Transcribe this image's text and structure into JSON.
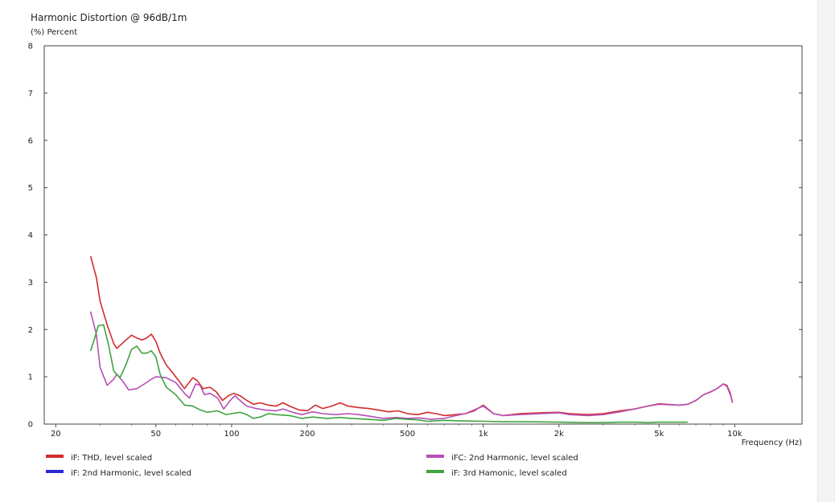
{
  "chart_data": {
    "type": "line",
    "title": "Harmonic Distortion @ 96dB/1m",
    "ylabel": "(%)  Percent",
    "xlabel": "Frequency  (Hz)",
    "x_scale": "log",
    "xlim": [
      18,
      18500
    ],
    "ylim": [
      0,
      8
    ],
    "grid": false,
    "legend_position": "bottom",
    "y_ticks": [
      {
        "value": 0,
        "label": "0"
      },
      {
        "value": 1,
        "label": "1"
      },
      {
        "value": 2,
        "label": "2"
      },
      {
        "value": 3,
        "label": "3"
      },
      {
        "value": 4,
        "label": "4"
      },
      {
        "value": 5,
        "label": "5"
      },
      {
        "value": 6,
        "label": "6"
      },
      {
        "value": 7,
        "label": "7"
      },
      {
        "value": 8,
        "label": "8"
      }
    ],
    "x_ticks": [
      {
        "value": 20,
        "label": "20"
      },
      {
        "value": 50,
        "label": "50"
      },
      {
        "value": 100,
        "label": "100"
      },
      {
        "value": 200,
        "label": "200"
      },
      {
        "value": 500,
        "label": "500"
      },
      {
        "value": 1000,
        "label": "1k"
      },
      {
        "value": 2000,
        "label": "2k"
      },
      {
        "value": 5000,
        "label": "5k"
      },
      {
        "value": 10000,
        "label": "10k"
      }
    ],
    "series": [
      {
        "name": "iF: THD, level scaled",
        "color": "#d42a2a",
        "points": [
          [
            27.5,
            3.55
          ],
          [
            29,
            3.1
          ],
          [
            30,
            2.6
          ],
          [
            32,
            2.1
          ],
          [
            34,
            1.7
          ],
          [
            35,
            1.6
          ],
          [
            37,
            1.72
          ],
          [
            40,
            1.88
          ],
          [
            42,
            1.82
          ],
          [
            44,
            1.78
          ],
          [
            46,
            1.82
          ],
          [
            48,
            1.9
          ],
          [
            50,
            1.75
          ],
          [
            52,
            1.5
          ],
          [
            55,
            1.25
          ],
          [
            58,
            1.1
          ],
          [
            62,
            0.9
          ],
          [
            65,
            0.75
          ],
          [
            70,
            0.98
          ],
          [
            73,
            0.92
          ],
          [
            77,
            0.75
          ],
          [
            82,
            0.78
          ],
          [
            87,
            0.68
          ],
          [
            92,
            0.5
          ],
          [
            97,
            0.6
          ],
          [
            102,
            0.65
          ],
          [
            108,
            0.6
          ],
          [
            115,
            0.5
          ],
          [
            122,
            0.42
          ],
          [
            130,
            0.45
          ],
          [
            140,
            0.4
          ],
          [
            150,
            0.38
          ],
          [
            160,
            0.45
          ],
          [
            170,
            0.38
          ],
          [
            185,
            0.3
          ],
          [
            200,
            0.28
          ],
          [
            215,
            0.4
          ],
          [
            230,
            0.33
          ],
          [
            250,
            0.38
          ],
          [
            270,
            0.45
          ],
          [
            290,
            0.38
          ],
          [
            320,
            0.35
          ],
          [
            350,
            0.33
          ],
          [
            380,
            0.3
          ],
          [
            420,
            0.26
          ],
          [
            460,
            0.28
          ],
          [
            500,
            0.22
          ],
          [
            550,
            0.2
          ],
          [
            600,
            0.25
          ],
          [
            650,
            0.22
          ],
          [
            700,
            0.18
          ],
          [
            780,
            0.2
          ],
          [
            850,
            0.22
          ],
          [
            920,
            0.28
          ],
          [
            1000,
            0.4
          ],
          [
            1100,
            0.22
          ],
          [
            1200,
            0.18
          ],
          [
            1400,
            0.22
          ],
          [
            1700,
            0.24
          ],
          [
            2000,
            0.25
          ],
          [
            2200,
            0.22
          ],
          [
            2600,
            0.2
          ],
          [
            3000,
            0.22
          ],
          [
            3500,
            0.28
          ],
          [
            4000,
            0.32
          ],
          [
            4500,
            0.38
          ],
          [
            5000,
            0.43
          ],
          [
            6000,
            0.4
          ],
          [
            6500,
            0.42
          ],
          [
            7000,
            0.5
          ],
          [
            7500,
            0.62
          ],
          [
            8000,
            0.68
          ],
          [
            8500,
            0.75
          ],
          [
            9000,
            0.85
          ],
          [
            9300,
            0.82
          ],
          [
            9600,
            0.65
          ],
          [
            9800,
            0.45
          ]
        ]
      },
      {
        "name": "iF: 2nd Harmonic, level scaled",
        "color": "#2a2ad4",
        "points": []
      },
      {
        "name": "iFC: 2nd Harmonic, level scaled",
        "color": "#b54fb5",
        "points": [
          [
            27.5,
            2.38
          ],
          [
            29,
            1.9
          ],
          [
            30,
            1.2
          ],
          [
            32,
            0.82
          ],
          [
            34,
            0.95
          ],
          [
            35,
            1.05
          ],
          [
            37,
            0.9
          ],
          [
            39,
            0.72
          ],
          [
            42,
            0.75
          ],
          [
            45,
            0.85
          ],
          [
            48,
            0.95
          ],
          [
            50,
            1.0
          ],
          [
            55,
            0.98
          ],
          [
            60,
            0.88
          ],
          [
            65,
            0.65
          ],
          [
            68,
            0.55
          ],
          [
            72,
            0.85
          ],
          [
            75,
            0.82
          ],
          [
            78,
            0.62
          ],
          [
            82,
            0.65
          ],
          [
            88,
            0.55
          ],
          [
            93,
            0.32
          ],
          [
            98,
            0.48
          ],
          [
            103,
            0.6
          ],
          [
            108,
            0.5
          ],
          [
            115,
            0.38
          ],
          [
            125,
            0.33
          ],
          [
            135,
            0.3
          ],
          [
            150,
            0.28
          ],
          [
            160,
            0.32
          ],
          [
            175,
            0.25
          ],
          [
            190,
            0.2
          ],
          [
            210,
            0.26
          ],
          [
            230,
            0.22
          ],
          [
            260,
            0.2
          ],
          [
            290,
            0.22
          ],
          [
            320,
            0.2
          ],
          [
            360,
            0.16
          ],
          [
            400,
            0.12
          ],
          [
            450,
            0.14
          ],
          [
            500,
            0.12
          ],
          [
            560,
            0.13
          ],
          [
            620,
            0.1
          ],
          [
            700,
            0.12
          ],
          [
            780,
            0.18
          ],
          [
            850,
            0.22
          ],
          [
            920,
            0.3
          ],
          [
            1000,
            0.38
          ],
          [
            1100,
            0.22
          ],
          [
            1200,
            0.18
          ],
          [
            1400,
            0.2
          ],
          [
            1700,
            0.22
          ],
          [
            2000,
            0.24
          ],
          [
            2200,
            0.2
          ],
          [
            2600,
            0.18
          ],
          [
            3000,
            0.2
          ],
          [
            3500,
            0.26
          ],
          [
            4000,
            0.32
          ],
          [
            4500,
            0.38
          ],
          [
            5000,
            0.42
          ],
          [
            6000,
            0.4
          ],
          [
            6500,
            0.42
          ],
          [
            7000,
            0.5
          ],
          [
            7500,
            0.62
          ],
          [
            8000,
            0.68
          ],
          [
            8500,
            0.75
          ],
          [
            9000,
            0.85
          ],
          [
            9300,
            0.8
          ],
          [
            9600,
            0.62
          ],
          [
            9800,
            0.45
          ]
        ]
      },
      {
        "name": "iF: 3rd Hamonic, level scaled",
        "color": "#3fa33f",
        "points": [
          [
            27.5,
            1.55
          ],
          [
            28.5,
            1.8
          ],
          [
            29.5,
            2.08
          ],
          [
            31,
            2.1
          ],
          [
            32.5,
            1.65
          ],
          [
            34,
            1.12
          ],
          [
            36,
            0.98
          ],
          [
            38,
            1.25
          ],
          [
            40,
            1.58
          ],
          [
            42,
            1.65
          ],
          [
            44,
            1.5
          ],
          [
            46,
            1.5
          ],
          [
            48,
            1.55
          ],
          [
            50,
            1.42
          ],
          [
            52,
            1.05
          ],
          [
            55,
            0.78
          ],
          [
            60,
            0.62
          ],
          [
            65,
            0.4
          ],
          [
            70,
            0.38
          ],
          [
            75,
            0.3
          ],
          [
            80,
            0.25
          ],
          [
            88,
            0.28
          ],
          [
            95,
            0.2
          ],
          [
            100,
            0.22
          ],
          [
            108,
            0.25
          ],
          [
            115,
            0.2
          ],
          [
            122,
            0.12
          ],
          [
            130,
            0.15
          ],
          [
            140,
            0.22
          ],
          [
            150,
            0.2
          ],
          [
            170,
            0.18
          ],
          [
            190,
            0.12
          ],
          [
            210,
            0.15
          ],
          [
            240,
            0.12
          ],
          [
            270,
            0.14
          ],
          [
            300,
            0.12
          ],
          [
            350,
            0.1
          ],
          [
            400,
            0.08
          ],
          [
            450,
            0.12
          ],
          [
            500,
            0.1
          ],
          [
            550,
            0.09
          ],
          [
            600,
            0.06
          ],
          [
            700,
            0.08
          ],
          [
            800,
            0.07
          ],
          [
            1000,
            0.06
          ],
          [
            1200,
            0.05
          ],
          [
            1500,
            0.05
          ],
          [
            2000,
            0.04
          ],
          [
            2500,
            0.03
          ],
          [
            3000,
            0.03
          ],
          [
            3500,
            0.04
          ],
          [
            4000,
            0.04
          ],
          [
            4500,
            0.03
          ],
          [
            5000,
            0.04
          ],
          [
            6500,
            0.04
          ]
        ]
      }
    ],
    "legend_layout": [
      {
        "series": 0,
        "col": 0,
        "row": 0
      },
      {
        "series": 2,
        "col": 1,
        "row": 0
      },
      {
        "series": 1,
        "col": 0,
        "row": 1
      },
      {
        "series": 3,
        "col": 1,
        "row": 1
      }
    ]
  }
}
